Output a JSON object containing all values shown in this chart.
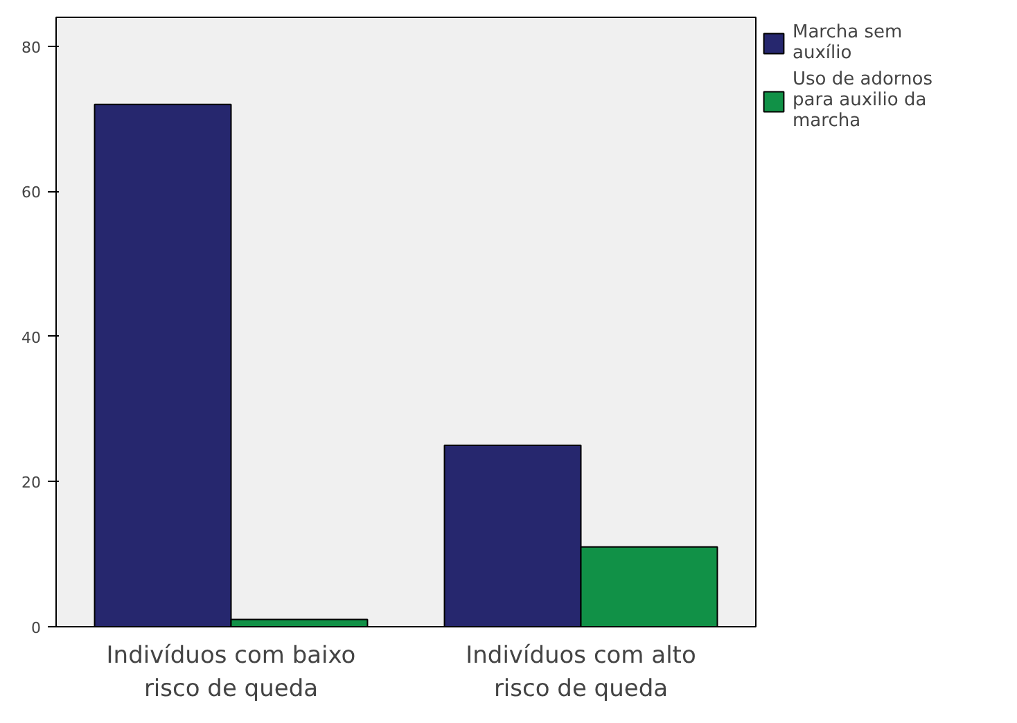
{
  "chart_data": {
    "type": "bar",
    "categories": [
      "Indivíduos com baixo risco de queda",
      "Indivíduos com alto risco de queda"
    ],
    "series": [
      {
        "name": "Marcha sem auxílio",
        "color": "#26276e",
        "values": [
          72,
          25
        ]
      },
      {
        "name": "Uso de adornos para auxilio da marcha",
        "color": "#119147",
        "values": [
          1,
          11
        ]
      }
    ],
    "ylim": [
      0,
      84
    ],
    "yticks": [
      0,
      20,
      40,
      60,
      80
    ],
    "grid": false,
    "legend": "right"
  }
}
